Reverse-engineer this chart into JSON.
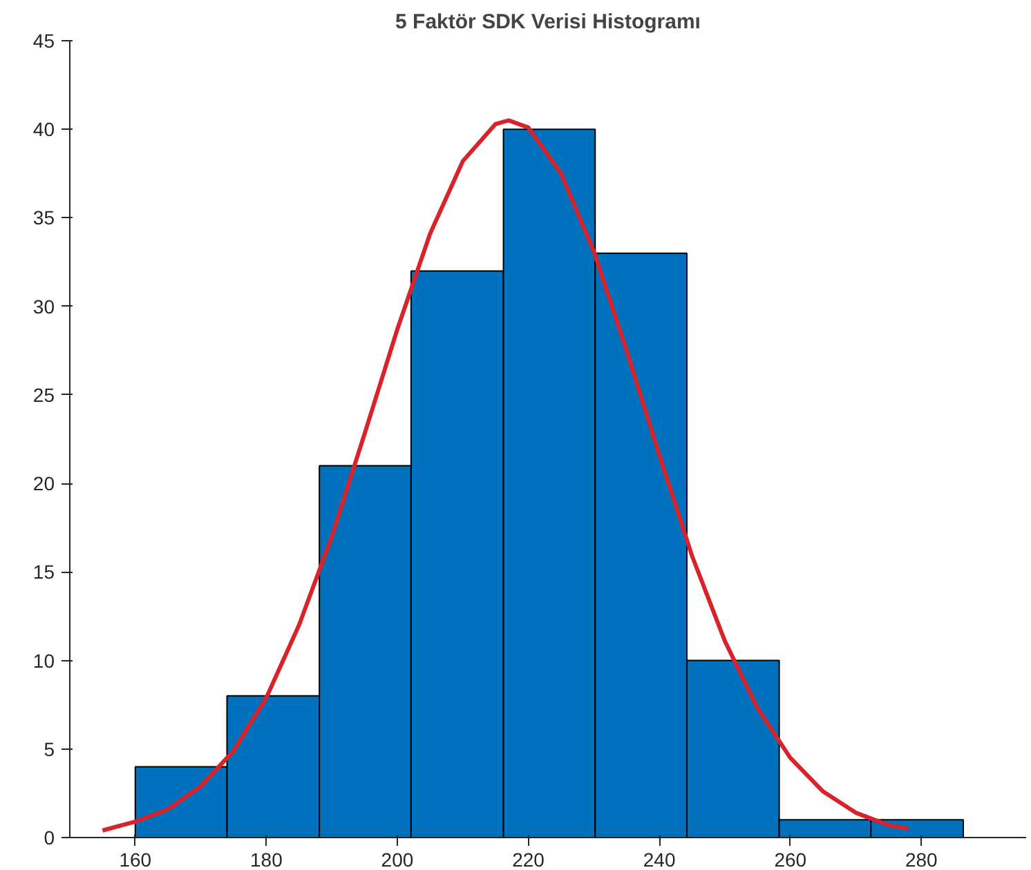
{
  "chart_data": {
    "type": "histogram",
    "title": "5 Faktör SDK Verisi Histogramı",
    "series": [
      {
        "color": "#0072bd",
        "bins": [
          160,
          174,
          188.1,
          202.1,
          216.2,
          230.2,
          244.2,
          258.3,
          272.3,
          286.4
        ],
        "values": [
          4,
          8,
          21,
          32,
          40,
          33,
          10,
          1,
          1
        ]
      },
      {
        "type": "line",
        "color": "#d9232b",
        "x": [
          155,
          160,
          165,
          170,
          175,
          180,
          185,
          190,
          195,
          200,
          205,
          210,
          215,
          217,
          220,
          225,
          230,
          235,
          240,
          245,
          250,
          255,
          260,
          265,
          270,
          275,
          278
        ],
        "values": [
          0.4,
          0.9,
          1.6,
          2.9,
          4.9,
          7.9,
          12,
          17,
          22.8,
          28.7,
          34.1,
          38.2,
          40.3,
          40.5,
          40.1,
          37.5,
          33.1,
          27.5,
          21.6,
          15.9,
          11.1,
          7.3,
          4.5,
          2.6,
          1.4,
          0.7,
          0.5
        ]
      }
    ],
    "xlim": [
      150,
      296
    ],
    "xticks": [
      160,
      180,
      200,
      220,
      240,
      260,
      280
    ],
    "ylim": [
      0,
      45
    ],
    "yticks": [
      0,
      5,
      10,
      15,
      20,
      25,
      30,
      35,
      40,
      45
    ],
    "grid": false
  }
}
